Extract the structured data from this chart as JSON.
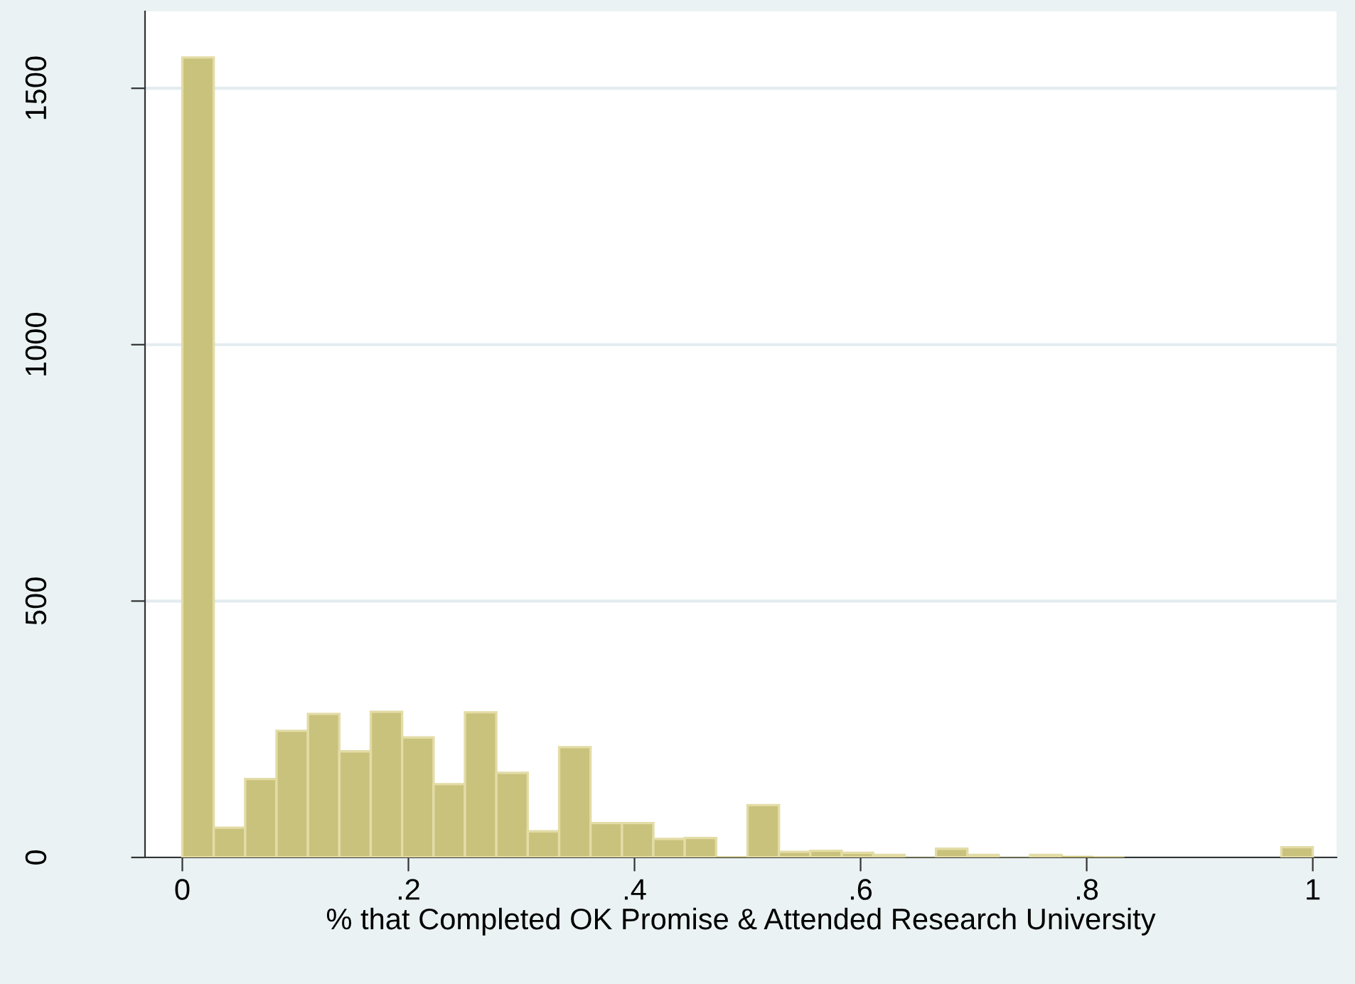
{
  "chart_data": {
    "type": "histogram",
    "xlabel": "% that Completed OK Promise & Attended Research University",
    "bins": [
      0,
      0.02778,
      0.05556,
      0.08333,
      0.11111,
      0.13889,
      0.16667,
      0.19444,
      0.22222,
      0.25,
      0.27778,
      0.30556,
      0.33333,
      0.36111,
      0.38889,
      0.41667,
      0.44444,
      0.47222,
      0.5,
      0.52778,
      0.55556,
      0.58333,
      0.61111,
      0.63889,
      0.66667,
      0.69444,
      0.72222,
      0.75,
      0.77778,
      0.80556,
      0.83333,
      0.86111,
      0.88889,
      0.91667,
      0.94444,
      0.97222,
      1
    ],
    "values": [
      1560,
      58,
      153,
      247,
      280,
      207,
      284,
      234,
      143,
      283,
      165,
      51,
      215,
      67,
      67,
      36,
      38,
      2,
      102,
      11,
      13,
      9,
      5,
      1,
      17,
      5,
      1,
      5,
      3,
      2,
      0,
      0,
      0,
      0,
      0,
      20
    ],
    "color": "#c9c27d",
    "xlim": [
      -0.033,
      1.021
    ],
    "ylim": [
      0,
      1650
    ],
    "xticks": [
      0,
      {
        "value": 0.2,
        "label": ".2"
      },
      {
        "value": 0.4,
        "label": ".4"
      },
      {
        "value": 0.6,
        "label": ".6"
      },
      {
        "value": 0.8,
        "label": ".8"
      },
      1
    ],
    "yticks": [
      0,
      500,
      1000,
      1500
    ],
    "grid": "y"
  }
}
